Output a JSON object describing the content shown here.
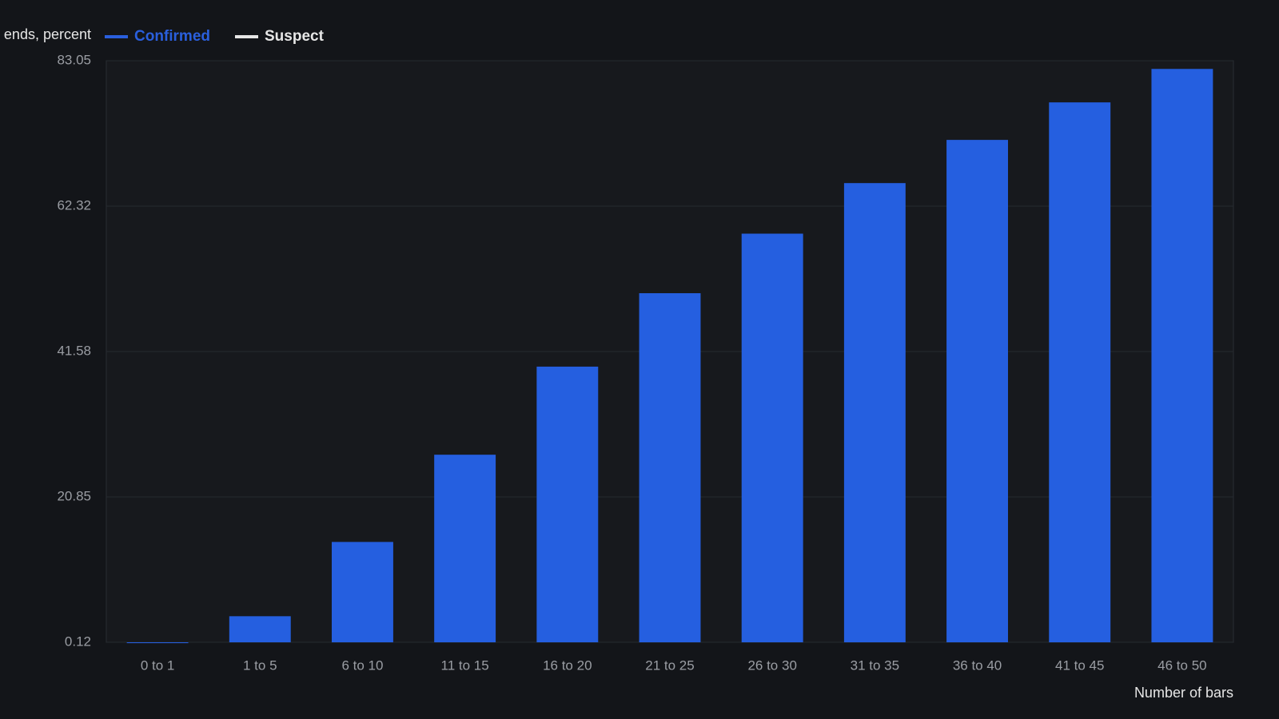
{
  "chart_data": {
    "type": "bar",
    "y_label": "ends, percent",
    "x_label": "Number of bars",
    "legend": [
      {
        "name": "Confirmed",
        "color": "#2a5fdd"
      },
      {
        "name": "Suspect",
        "color": "#e6e6e6"
      }
    ],
    "categories": [
      "0 to 1",
      "1 to 5",
      "6 to 10",
      "11 to 15",
      "16 to 20",
      "21 to 25",
      "26 to 30",
      "31 to 35",
      "36 to 40",
      "41 to 45",
      "46 to 50"
    ],
    "series": [
      {
        "name": "Confirmed",
        "color": "#255fe0",
        "values": [
          0,
          3.84,
          14.43,
          26.87,
          39.43,
          49.9,
          58.39,
          65.6,
          71.76,
          77.11,
          81.88
        ]
      }
    ],
    "ylim": [
      0.12,
      83.05
    ],
    "yticks": [
      0.12,
      20.85,
      41.58,
      62.32,
      83.05
    ],
    "grid": true
  }
}
